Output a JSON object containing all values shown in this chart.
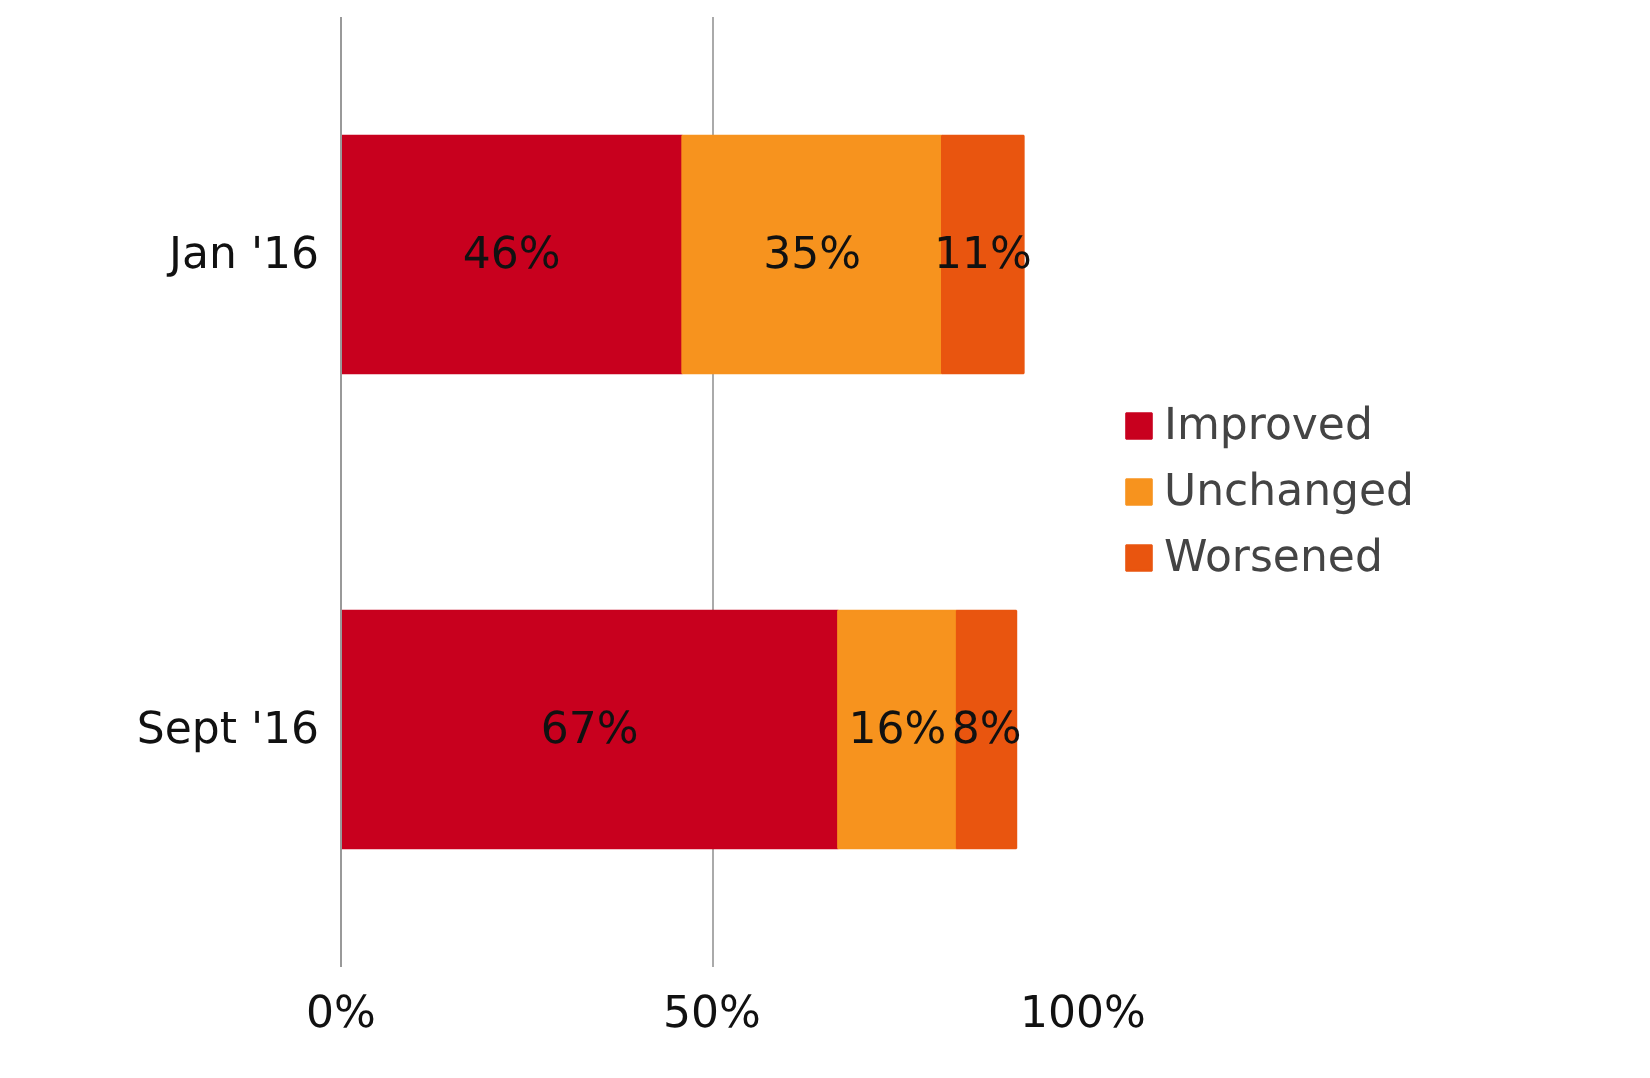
{
  "chart_data": {
    "type": "bar",
    "orientation": "horizontal",
    "stacked": true,
    "categories": [
      "Jan '16",
      "Sept '16"
    ],
    "series": [
      {
        "name": "Improved",
        "color": "#c8001e",
        "values": [
          46,
          67
        ],
        "value_labels": [
          "46%",
          "67%"
        ]
      },
      {
        "name": "Unchanged",
        "color": "#f7931e",
        "values": [
          35,
          16
        ],
        "value_labels": [
          "35%",
          "16%"
        ]
      },
      {
        "name": "Worsened",
        "color": "#e9550f",
        "values": [
          11,
          8
        ],
        "value_labels": [
          "11%",
          "8%"
        ]
      }
    ],
    "xlim": [
      0,
      100
    ],
    "xticks": [
      {
        "value": 0,
        "label": "0%"
      },
      {
        "value": 50,
        "label": "50%"
      },
      {
        "value": 100,
        "label": "100%"
      }
    ],
    "grid": "x",
    "legend": "right"
  }
}
